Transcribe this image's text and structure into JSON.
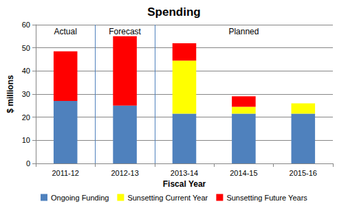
{
  "chart_data": {
    "type": "bar",
    "title": "Spending",
    "x_label": "Fiscal Year",
    "y_label": "$ millions",
    "categories": [
      "2011-12",
      "2012-13",
      "2013-14",
      "2014-15",
      "2015-16"
    ],
    "series": [
      {
        "name": "Ongoing Funding",
        "color": "#4f81bd",
        "values": [
          27,
          25,
          21.5,
          21.5,
          21.5
        ]
      },
      {
        "name": "Sunsetting Current Year",
        "color": "#ffff00",
        "values": [
          0,
          0,
          23,
          3,
          4.5
        ]
      },
      {
        "name": "Sunsetting Future Years",
        "color": "#ff0000",
        "values": [
          21.5,
          30,
          7.5,
          4.5,
          0
        ]
      }
    ],
    "stacked": true,
    "ylim": [
      0,
      60
    ],
    "yticks": [
      0,
      10,
      20,
      30,
      40,
      50,
      60
    ],
    "grid": true,
    "legend": "bottom",
    "annotations": [
      {
        "text": "Actual",
        "categories": [
          "2011-12"
        ]
      },
      {
        "text": "Forecast",
        "categories": [
          "2012-13"
        ]
      },
      {
        "text": "Planned",
        "categories": [
          "2013-14",
          "2014-15",
          "2015-16"
        ]
      }
    ]
  }
}
